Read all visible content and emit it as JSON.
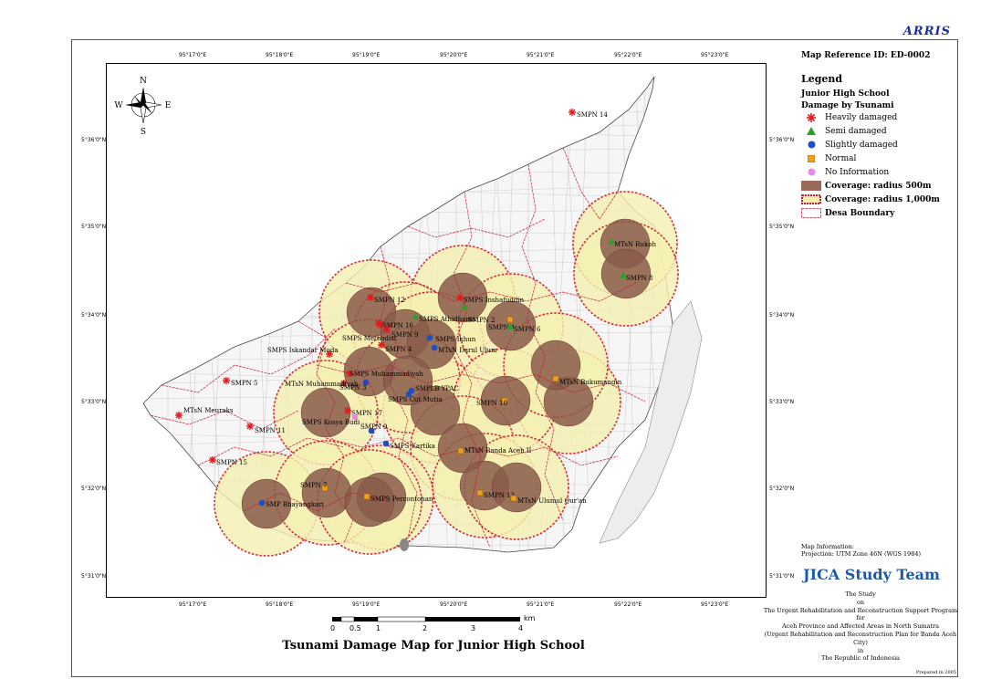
{
  "header": {
    "brand": "ARRIS"
  },
  "map": {
    "title": "Tsunami Damage Map for Junior High School",
    "reference": "Map Reference ID: ED-0002",
    "top_ticks": [
      "95°17'0\"E",
      "95°18'0\"E",
      "95°19'0\"E",
      "95°20'0\"E",
      "95°21'0\"E",
      "95°22'0\"E",
      "95°23'0\"E"
    ],
    "bottom_ticks": [
      "95°17'0\"E",
      "95°18'0\"E",
      "95°19'0\"E",
      "95°20'0\"E",
      "95°21'0\"E",
      "95°22'0\"E",
      "95°23'0\"E"
    ],
    "left_ticks": [
      "5°36'0\"N",
      "5°35'0\"N",
      "5°34'0\"N",
      "5°33'0\"N",
      "5°32'0\"N",
      "5°31'0\"N"
    ],
    "right_ticks": [
      "5°36'0\"N",
      "5°35'0\"N",
      "5°34'0\"N",
      "5°33'0\"N",
      "5°32'0\"N",
      "5°31'0\"N"
    ],
    "compass": {
      "n": "N",
      "s": "S",
      "e": "E",
      "w": "W"
    },
    "scale": {
      "unit": "km",
      "labels": [
        "0",
        "0.5",
        "1",
        "2",
        "3",
        "4"
      ]
    },
    "schools": [
      {
        "name": "SMPN 14",
        "status": "heavy"
      },
      {
        "name": "MTsN Rukoh",
        "status": "semi"
      },
      {
        "name": "SMPN 8",
        "status": "semi"
      },
      {
        "name": "SMPN 12",
        "status": "heavy"
      },
      {
        "name": "SMPS Inshafuddin",
        "status": "heavy"
      },
      {
        "name": "SMPN 2",
        "status": "semi"
      },
      {
        "name": "SMPN 16",
        "status": "heavy"
      },
      {
        "name": "SMPS Athidhama",
        "status": "semi"
      },
      {
        "name": "SMPN 1",
        "status": "normal"
      },
      {
        "name": "SMPN 6",
        "status": "semi"
      },
      {
        "name": "SMPS Methodist",
        "status": "heavy"
      },
      {
        "name": "SMPN 9",
        "status": "heavy"
      },
      {
        "name": "SMPS Ikhun",
        "status": "slight"
      },
      {
        "name": "SMPN 4",
        "status": "heavy"
      },
      {
        "name": "MTsN Darul Ulum",
        "status": "slight"
      },
      {
        "name": "SMPS Iskandar Muda",
        "status": "heavy"
      },
      {
        "name": "SMPS Muhammadiyah",
        "status": "heavy"
      },
      {
        "name": "MTsN Muhammadiyah",
        "status": "heavy"
      },
      {
        "name": "SMPN 3",
        "status": "slight"
      },
      {
        "name": "SMPLB YPAC",
        "status": "slight"
      },
      {
        "name": "SMPS Cut Mutia",
        "status": "slight"
      },
      {
        "name": "MTsN Bukumangin",
        "status": "normal"
      },
      {
        "name": "SMPN 5",
        "status": "heavy"
      },
      {
        "name": "MTsN Meuraks",
        "status": "heavy"
      },
      {
        "name": "SMPN 17",
        "status": "heavy"
      },
      {
        "name": "SMPS Kosya Budi",
        "status": "noinfo"
      },
      {
        "name": "SMPN 10",
        "status": "normal"
      },
      {
        "name": "SMPN 11",
        "status": "heavy"
      },
      {
        "name": "SMPN 9",
        "status": "slight"
      },
      {
        "name": "SMPS Kartika",
        "status": "slight"
      },
      {
        "name": "MTsN Banda Aceh II",
        "status": "normal"
      },
      {
        "name": "SMPN 15",
        "status": "heavy"
      },
      {
        "name": "SMPN 7",
        "status": "normal"
      },
      {
        "name": "SMP Bhayangkari",
        "status": "slight"
      },
      {
        "name": "SMPS Percontohan",
        "status": "normal"
      },
      {
        "name": "SMPN 13",
        "status": "normal"
      },
      {
        "name": "MTsN Ulumul Qur'an",
        "status": "normal"
      }
    ]
  },
  "legend": {
    "title": "Legend",
    "subtitle": "Junior High School",
    "group": "Damage by Tsunami",
    "items": [
      {
        "label": "Heavily damaged",
        "icon": "red-asterisk",
        "color": "#e31a1c"
      },
      {
        "label": "Semi damaged",
        "icon": "green-triangle",
        "color": "#2ca02c"
      },
      {
        "label": "Slightly damaged",
        "icon": "blue-dot",
        "color": "#1f4fbf"
      },
      {
        "label": "Normal",
        "icon": "orange-square",
        "color": "#f0a020"
      },
      {
        "label": "No Information",
        "icon": "pink-dot",
        "color": "#e68ce6"
      }
    ],
    "coverage": [
      {
        "label": "Coverage: radius 500m",
        "color": "#9a6a5a"
      },
      {
        "label": "Coverage: radius 1,000m",
        "color": "#f5f0b0"
      },
      {
        "label": "Desa Boundary",
        "color": "#c21d3b"
      }
    ]
  },
  "info": {
    "map_info": "Map Information:",
    "projection": "Projection: UTM Zone 46N (WGS 1984)"
  },
  "credits": {
    "team": "JICA Study Team",
    "lines": [
      "The Study",
      "on",
      "The Urgent Rehabilitation and Reconstruction Support Program",
      "for",
      "Aceh Province and Affected Areas in North Sumatra",
      "(Urgent Rehabilitation and Reconstruction Plan for Banda Aceh City)",
      "in",
      "The Republic of Indonesia"
    ],
    "prepared": "Prepared in 2005"
  }
}
